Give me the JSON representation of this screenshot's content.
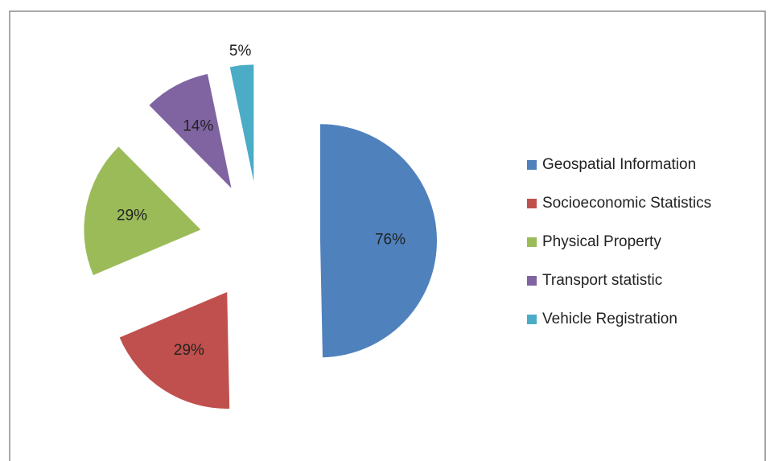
{
  "chart_data": {
    "type": "pie",
    "categories": [
      "Geospatial Information",
      "Socioeconomic Statistics",
      "Physical Property",
      "Transport statistic",
      "Vehicle Registration"
    ],
    "values": [
      76,
      29,
      29,
      14,
      5
    ],
    "value_labels": [
      "76%",
      "29%",
      "29%",
      "14%",
      "5%"
    ],
    "colors": [
      "#4f81bd",
      "#c0504d",
      "#9bbb59",
      "#8064a2",
      "#4bacc6"
    ],
    "legend": "right",
    "exploded": true
  }
}
